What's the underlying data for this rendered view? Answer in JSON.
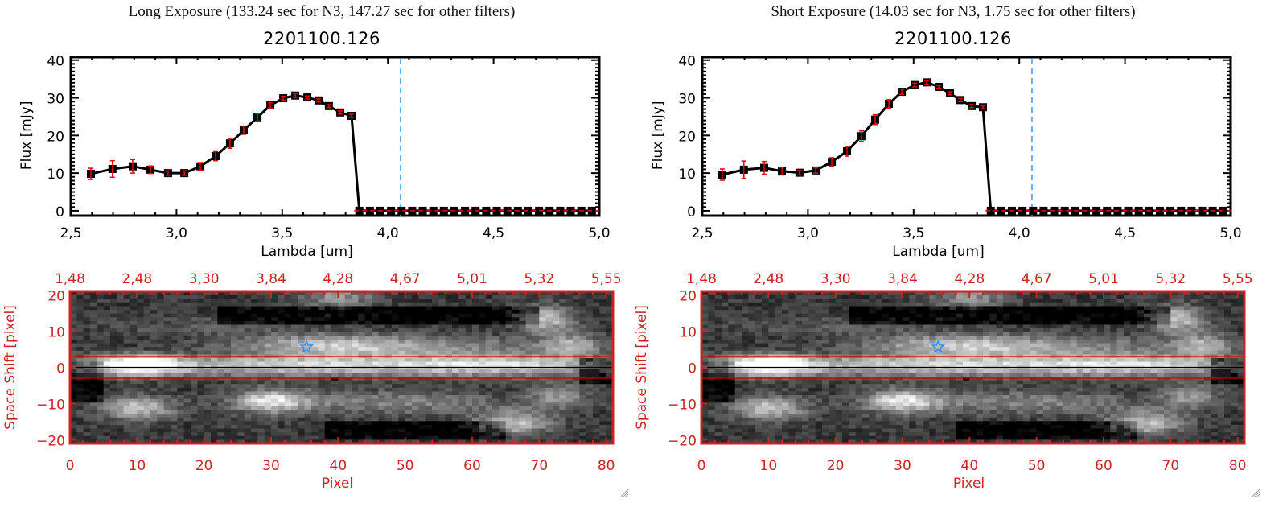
{
  "panels": [
    {
      "id": "long",
      "title": "Long Exposure (133.24 sec for N3, 147.27 sec for other filters)",
      "object_id": "2201100.126"
    },
    {
      "id": "short",
      "title": "Short Exposure (14.03 sec for N3, 1.75 sec for other filters)",
      "object_id": "2201100.126"
    }
  ],
  "colors": {
    "axis_black": "#000000",
    "errorbar_red": "#ee0000",
    "marker_black": "#000000",
    "dashed_blue": "#3399ee",
    "zero_line_red": "#dd1111",
    "image_axis_red": "#cc2222",
    "aperture_red": "#dd0000",
    "star_blue": "#2f8fff"
  },
  "chart_data": [
    {
      "type": "line",
      "panel": "long",
      "title": "2201100.126",
      "xlabel": "Lambda [um]",
      "ylabel": "Flux [mJy]",
      "xlim": [
        2.5,
        5.0
      ],
      "ylim": [
        -1.3,
        40.8
      ],
      "xticks": [
        2.5,
        3.0,
        3.5,
        4.0,
        4.5,
        5.0
      ],
      "xtick_labels": [
        "2,5",
        "3,0",
        "3,5",
        "4,0",
        "4,5",
        "5,0"
      ],
      "yticks": [
        0,
        10,
        20,
        30,
        40
      ],
      "ytick_labels": [
        "0",
        "10",
        "20",
        "30",
        "40"
      ],
      "vline_dashed": 4.06,
      "hline_dashed": 0,
      "grid": false,
      "series": [
        {
          "name": "flux",
          "x": [
            2.595,
            2.697,
            2.793,
            2.877,
            2.96,
            3.037,
            3.113,
            3.185,
            3.253,
            3.318,
            3.383,
            3.444,
            3.505,
            3.562,
            3.619,
            3.672,
            3.721,
            3.775,
            3.828,
            3.865,
            3.915,
            3.965,
            4.015,
            4.065,
            4.115,
            4.165,
            4.215,
            4.265,
            4.315,
            4.365,
            4.415,
            4.465,
            4.515,
            4.565,
            4.615,
            4.665,
            4.715,
            4.765,
            4.815,
            4.865,
            4.915,
            4.965
          ],
          "y": [
            9.8,
            11.1,
            11.8,
            10.9,
            10.0,
            10.0,
            11.8,
            14.5,
            17.9,
            21.4,
            24.8,
            28.0,
            29.9,
            30.6,
            30.1,
            29.3,
            27.8,
            26.1,
            25.2,
            0,
            0,
            0,
            0,
            0,
            0,
            0,
            0,
            0,
            0,
            0,
            0,
            0,
            0,
            0,
            0,
            0,
            0,
            0,
            0,
            0,
            0,
            0
          ],
          "yerr": [
            1.5,
            2.2,
            1.8,
            1.0,
            0.6,
            0.6,
            1.0,
            1.2,
            1.3,
            1.1,
            1.0,
            0.7,
            0.5,
            0.5,
            0.4,
            0.4,
            0.4,
            0.4,
            0.4,
            0,
            0,
            0,
            0,
            0,
            0,
            0,
            0,
            0,
            0,
            0,
            0,
            0,
            0,
            0,
            0,
            0,
            0,
            0,
            0,
            0,
            0,
            0
          ]
        }
      ]
    },
    {
      "type": "line",
      "panel": "short",
      "title": "2201100.126",
      "xlabel": "Lambda [um]",
      "ylabel": "Flux [mJy]",
      "xlim": [
        2.5,
        5.0
      ],
      "ylim": [
        -1.3,
        40.8
      ],
      "xticks": [
        2.5,
        3.0,
        3.5,
        4.0,
        4.5,
        5.0
      ],
      "xtick_labels": [
        "2,5",
        "3,0",
        "3,5",
        "4,0",
        "4,5",
        "5,0"
      ],
      "yticks": [
        0,
        10,
        20,
        30,
        40
      ],
      "ytick_labels": [
        "0",
        "10",
        "20",
        "30",
        "40"
      ],
      "vline_dashed": 4.06,
      "hline_dashed": 0,
      "grid": false,
      "series": [
        {
          "name": "flux",
          "x": [
            2.595,
            2.697,
            2.793,
            2.877,
            2.96,
            3.037,
            3.113,
            3.185,
            3.253,
            3.318,
            3.383,
            3.444,
            3.505,
            3.562,
            3.619,
            3.672,
            3.721,
            3.775,
            3.828,
            3.865,
            3.915,
            3.965,
            4.015,
            4.065,
            4.115,
            4.165,
            4.215,
            4.265,
            4.315,
            4.365,
            4.415,
            4.465,
            4.515,
            4.565,
            4.615,
            4.665,
            4.715,
            4.765,
            4.815,
            4.865,
            4.915,
            4.965
          ],
          "y": [
            9.6,
            10.9,
            11.4,
            10.5,
            10.1,
            10.7,
            13.0,
            15.8,
            19.8,
            24.2,
            28.4,
            31.6,
            33.4,
            34.1,
            32.9,
            31.2,
            29.4,
            27.8,
            27.5,
            0,
            0,
            0,
            0,
            0,
            0,
            0,
            0,
            0,
            0,
            0,
            0,
            0,
            0,
            0,
            0,
            0,
            0,
            0,
            0,
            0,
            0,
            0
          ],
          "yerr": [
            1.5,
            2.3,
            1.7,
            1.0,
            0.6,
            0.7,
            1.1,
            1.3,
            1.4,
            1.3,
            1.1,
            0.7,
            0.5,
            0.5,
            0.4,
            0.4,
            0.4,
            0.4,
            0.4,
            0,
            0,
            0,
            0,
            0,
            0,
            0,
            0,
            0,
            0,
            0,
            0,
            0,
            0,
            0,
            0,
            0,
            0,
            0,
            0,
            0,
            0,
            0
          ]
        }
      ]
    },
    {
      "type": "heatmap",
      "panel": "long",
      "xlabel": "Pixel",
      "ylabel": "Space Shift [pixel]",
      "top_axis_label": "",
      "xlim": [
        0,
        81
      ],
      "ylim": [
        -21,
        21
      ],
      "xticks": [
        0,
        10,
        20,
        30,
        40,
        50,
        60,
        70,
        80
      ],
      "yticks": [
        -20,
        -10,
        0,
        10,
        20
      ],
      "ytick_labels": [
        "−20",
        "−10",
        "0",
        "10",
        "20"
      ],
      "top_xticks": [
        0,
        10,
        20,
        30,
        40,
        50,
        60,
        70,
        80
      ],
      "top_xtick_labels": [
        "1,48",
        "2,48",
        "3,30",
        "3,84",
        "4,28",
        "4,67",
        "5,01",
        "5,32",
        "5,55"
      ],
      "colormap": "grayscale",
      "n_cols": 81,
      "n_rows": 41,
      "aperture_lines": [
        3,
        -3
      ],
      "center_line": 0,
      "star_marker": {
        "x": 35.3,
        "y": 5.6
      },
      "dead_pixel": {
        "x": 39,
        "y": -3
      },
      "background_level": 0.22,
      "features": [
        {
          "x": 10,
          "y": 0.5,
          "sx": 4,
          "sy": 1.8,
          "amp": 0.78
        },
        {
          "x": 40,
          "y": 0.5,
          "sx": 30,
          "sy": 1.9,
          "amp": 0.62
        },
        {
          "x": 66,
          "y": 0.5,
          "sx": 8,
          "sy": 1.8,
          "amp": 0.25
        },
        {
          "x": 38,
          "y": 6,
          "sx": 9,
          "sy": 2.0,
          "amp": 0.45
        },
        {
          "x": 55,
          "y": 5.5,
          "sx": 14,
          "sy": 2.0,
          "amp": 0.3
        },
        {
          "x": 71,
          "y": 13,
          "sx": 3,
          "sy": 2.5,
          "amp": 0.55
        },
        {
          "x": 75,
          "y": 6,
          "sx": 3,
          "sy": 2.2,
          "amp": 0.4
        },
        {
          "x": 40,
          "y": 19,
          "sx": 4,
          "sy": 2.0,
          "amp": 0.35
        },
        {
          "x": 10,
          "y": -11,
          "sx": 4,
          "sy": 2.2,
          "amp": 0.55
        },
        {
          "x": 30,
          "y": -9,
          "sx": 4,
          "sy": 2.2,
          "amp": 0.62
        },
        {
          "x": 48,
          "y": -9.5,
          "sx": 12,
          "sy": 2.3,
          "amp": 0.3
        },
        {
          "x": 66,
          "y": -15,
          "sx": 4,
          "sy": 2.2,
          "amp": 0.55
        },
        {
          "x": 73,
          "y": -8,
          "sx": 3,
          "sy": 2.5,
          "amp": 0.35
        },
        {
          "x": 20,
          "y": 11,
          "sx": 12,
          "sy": 2.0,
          "amp": 0.12
        }
      ],
      "dark_bands": [
        {
          "x0": 22,
          "x1": 70,
          "y0": 11.5,
          "y1": 16,
          "depth": 0.3
        },
        {
          "x0": 38,
          "x1": 65,
          "y0": -19,
          "y1": -15,
          "depth": 0.3
        },
        {
          "x0": 0,
          "x1": 5,
          "y0": -9,
          "y1": 1,
          "depth": 0.25
        },
        {
          "x0": 76,
          "x1": 81,
          "y0": -4,
          "y1": 2,
          "depth": 0.3
        }
      ],
      "seed": 7
    },
    {
      "type": "heatmap",
      "panel": "short",
      "xlabel": "Pixel",
      "ylabel": "Space Shift [pixel]",
      "xlim": [
        0,
        81
      ],
      "ylim": [
        -21,
        21
      ],
      "xticks": [
        0,
        10,
        20,
        30,
        40,
        50,
        60,
        70,
        80
      ],
      "yticks": [
        -20,
        -10,
        0,
        10,
        20
      ],
      "ytick_labels": [
        "−20",
        "−10",
        "0",
        "10",
        "20"
      ],
      "top_xticks": [
        0,
        10,
        20,
        30,
        40,
        50,
        60,
        70,
        80
      ],
      "top_xtick_labels": [
        "1,48",
        "2,48",
        "3,30",
        "3,84",
        "4,28",
        "4,67",
        "5,01",
        "5,32",
        "5,55"
      ],
      "colormap": "grayscale",
      "n_cols": 81,
      "n_rows": 41,
      "aperture_lines": [
        3,
        -3
      ],
      "center_line": 0,
      "star_marker": {
        "x": 35.3,
        "y": 5.6
      },
      "dead_pixel": {
        "x": 39,
        "y": -3
      },
      "background_level": 0.22,
      "features": [
        {
          "x": 10,
          "y": 0.5,
          "sx": 4,
          "sy": 1.8,
          "amp": 0.78
        },
        {
          "x": 40,
          "y": 0.5,
          "sx": 30,
          "sy": 1.9,
          "amp": 0.62
        },
        {
          "x": 66,
          "y": 0.5,
          "sx": 8,
          "sy": 1.8,
          "amp": 0.25
        },
        {
          "x": 38,
          "y": 6,
          "sx": 9,
          "sy": 2.0,
          "amp": 0.45
        },
        {
          "x": 55,
          "y": 5.5,
          "sx": 14,
          "sy": 2.0,
          "amp": 0.3
        },
        {
          "x": 71,
          "y": 13,
          "sx": 3,
          "sy": 2.5,
          "amp": 0.55
        },
        {
          "x": 75,
          "y": 6,
          "sx": 3,
          "sy": 2.2,
          "amp": 0.4
        },
        {
          "x": 40,
          "y": 19,
          "sx": 4,
          "sy": 2.0,
          "amp": 0.35
        },
        {
          "x": 10,
          "y": -11,
          "sx": 4,
          "sy": 2.2,
          "amp": 0.55
        },
        {
          "x": 30,
          "y": -9,
          "sx": 4,
          "sy": 2.2,
          "amp": 0.62
        },
        {
          "x": 48,
          "y": -9.5,
          "sx": 12,
          "sy": 2.3,
          "amp": 0.3
        },
        {
          "x": 66,
          "y": -15,
          "sx": 4,
          "sy": 2.2,
          "amp": 0.55
        },
        {
          "x": 73,
          "y": -8,
          "sx": 3,
          "sy": 2.5,
          "amp": 0.35
        },
        {
          "x": 20,
          "y": 11,
          "sx": 12,
          "sy": 2.0,
          "amp": 0.12
        }
      ],
      "dark_bands": [
        {
          "x0": 22,
          "x1": 70,
          "y0": 11.5,
          "y1": 16,
          "depth": 0.3
        },
        {
          "x0": 38,
          "x1": 65,
          "y0": -19,
          "y1": -15,
          "depth": 0.3
        },
        {
          "x0": 0,
          "x1": 5,
          "y0": -9,
          "y1": 1,
          "depth": 0.25
        },
        {
          "x0": 76,
          "x1": 81,
          "y0": -4,
          "y1": 2,
          "depth": 0.3
        }
      ],
      "seed": 7
    }
  ]
}
